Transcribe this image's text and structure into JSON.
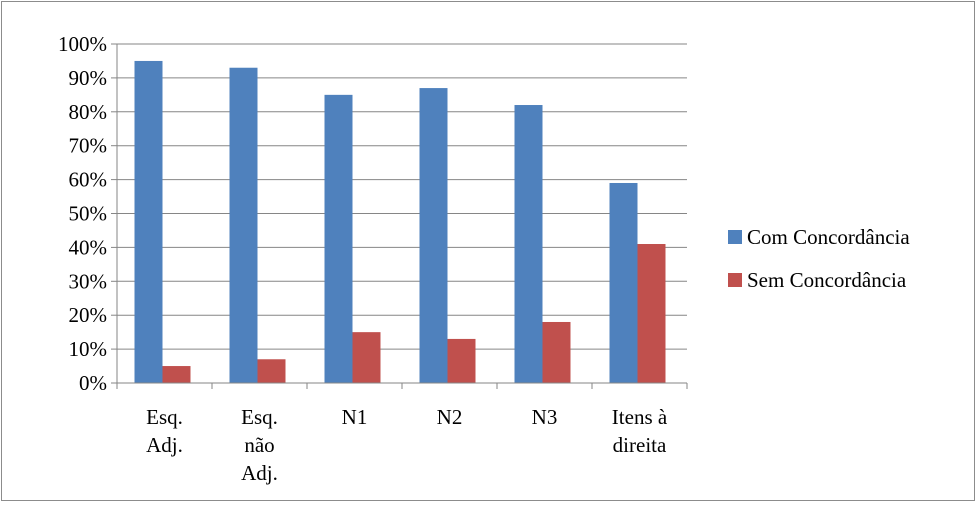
{
  "chart_data": {
    "type": "bar",
    "title": "",
    "xlabel": "",
    "ylabel": "",
    "ylim": [
      0,
      100
    ],
    "y_tick_step": 10,
    "y_tick_labels": [
      "0%",
      "10%",
      "20%",
      "30%",
      "40%",
      "50%",
      "60%",
      "70%",
      "80%",
      "90%",
      "100%"
    ],
    "grid": true,
    "legend_position": "right",
    "categories": [
      [
        "Esq.",
        "Adj."
      ],
      [
        "Esq.",
        "não",
        "Adj."
      ],
      [
        "N1"
      ],
      [
        "N2"
      ],
      [
        "N3"
      ],
      [
        "Itens à",
        "direita"
      ]
    ],
    "series": [
      {
        "name": "Com Concordância",
        "color": "#4f81bd",
        "values": [
          95,
          93,
          85,
          87,
          82,
          59
        ]
      },
      {
        "name": "Sem Concordância",
        "color": "#c0504d",
        "values": [
          5,
          7,
          15,
          13,
          18,
          41
        ]
      }
    ]
  }
}
